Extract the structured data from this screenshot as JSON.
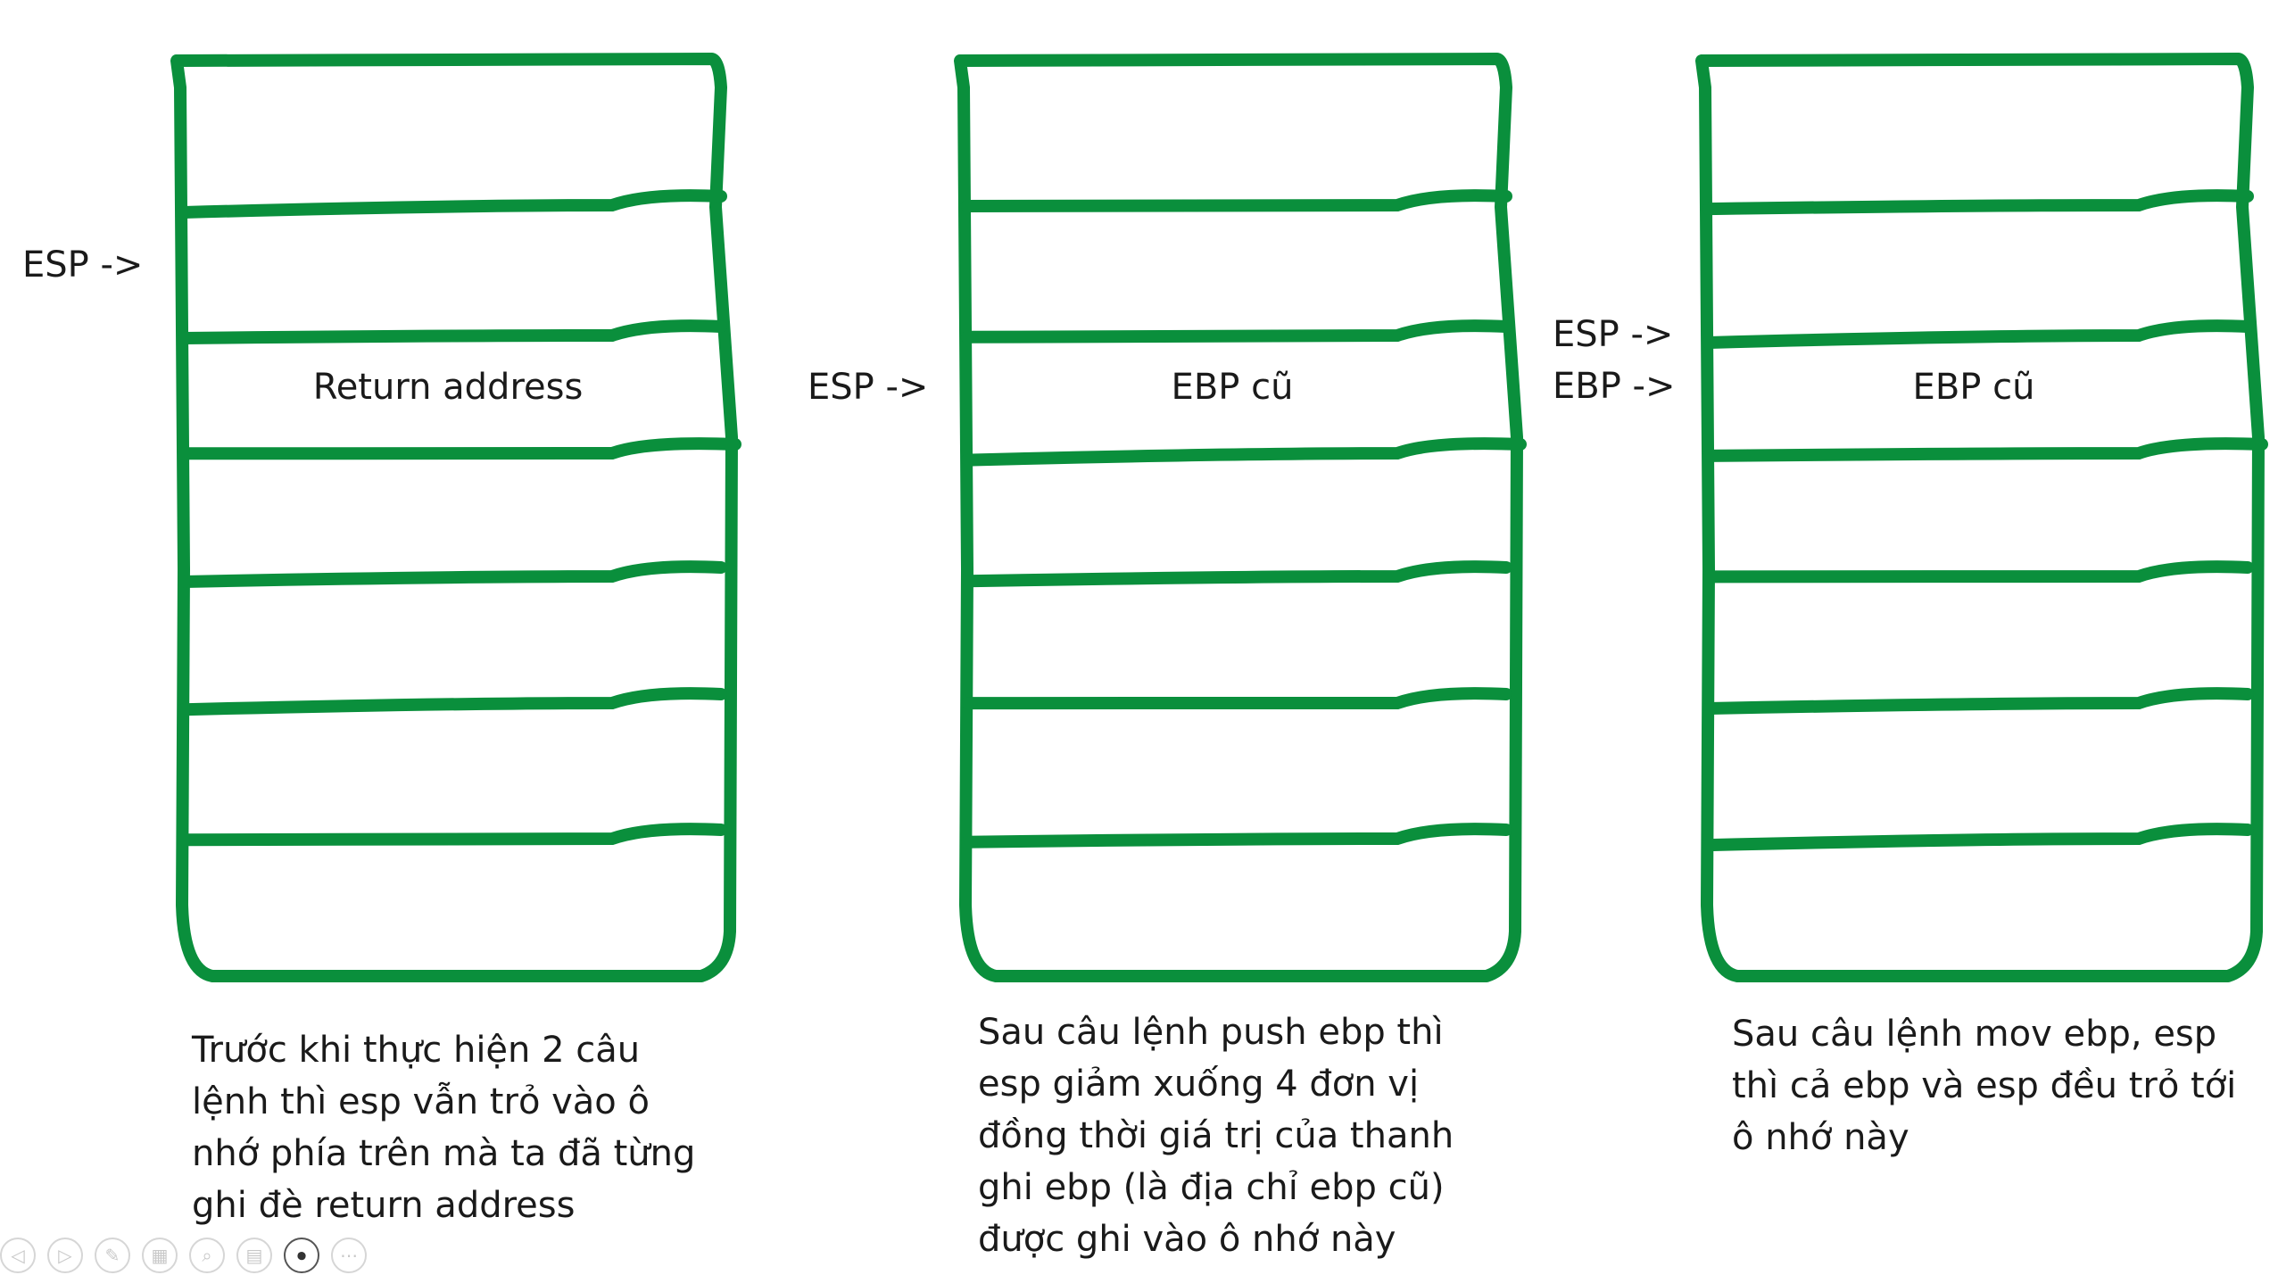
{
  "colors": {
    "stroke": "#0a8f3c",
    "text": "#1a1a1a"
  },
  "stacks": [
    {
      "pointers": [
        "ESP ->"
      ],
      "pointer_row": 1,
      "cell_text": "Return address",
      "cell_row": 2,
      "caption": "Trước khi thực hiện 2 câu\nlệnh thì esp vẫn trỏ vào ô\nnhớ phía trên mà ta đã từng\nghi đè return address"
    },
    {
      "pointers": [
        "ESP ->"
      ],
      "pointer_row": 2,
      "cell_text": "EBP cũ",
      "cell_row": 2,
      "caption": "Sau câu lệnh push ebp thì\nesp giảm xuống 4 đơn vị\nđồng thời giá trị của thanh\nghi ebp (là địa chỉ ebp cũ)\nđược ghi vào ô nhớ này"
    },
    {
      "pointers": [
        "ESP ->",
        "EBP ->"
      ],
      "pointer_row": 2,
      "cell_text": "EBP cũ",
      "cell_row": 2,
      "caption": "Sau câu lệnh mov ebp, esp\nthì cả ebp và esp đều trỏ tới\nô nhớ này"
    }
  ],
  "toolbar": {
    "buttons": [
      {
        "icon": "previous-slide-icon",
        "glyph": "◁"
      },
      {
        "icon": "next-slide-icon",
        "glyph": "▷"
      },
      {
        "icon": "pen-icon",
        "glyph": "✎"
      },
      {
        "icon": "slides-grid-icon",
        "glyph": "▦"
      },
      {
        "icon": "zoom-icon",
        "glyph": "⌕"
      },
      {
        "icon": "subtitles-icon",
        "glyph": "▤"
      },
      {
        "icon": "camera-icon",
        "glyph": "⏺"
      },
      {
        "icon": "more-options-icon",
        "glyph": "⋯"
      }
    ]
  }
}
